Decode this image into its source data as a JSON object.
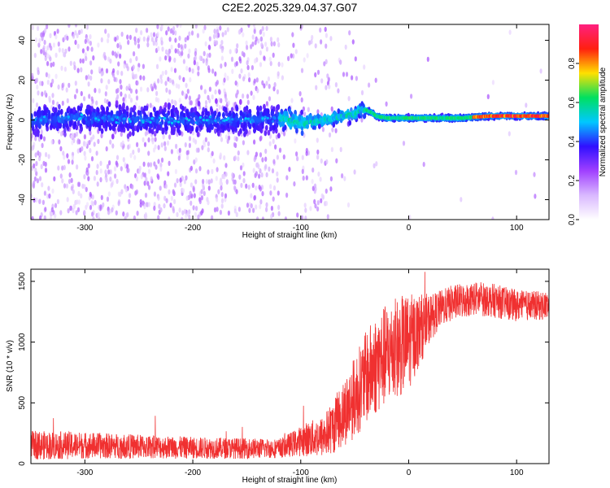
{
  "chart_data": [
    {
      "type": "heatmap",
      "title": "C2E2.2025.329.04.37.G07",
      "xlabel": "Height of straight line (km)",
      "ylabel": "Frequency (Hz)",
      "xlim": [
        -350,
        130
      ],
      "ylim": [
        -50,
        48
      ],
      "x_ticks": [
        -300,
        -200,
        -100,
        0,
        100
      ],
      "y_ticks": [
        -40,
        -20,
        0,
        20,
        40
      ],
      "colorbar": {
        "label": "Normalized spectral amplitude",
        "range": [
          0,
          1
        ],
        "ticks": [
          0.0,
          0.2,
          0.4,
          0.6,
          0.8
        ],
        "colors": [
          "#ffffff",
          "#d9b8ff",
          "#a040ff",
          "#3010ff",
          "#00c8ff",
          "#00e060",
          "#ffe000",
          "#ff2010",
          "#ff2080"
        ]
      },
      "ridge": {
        "description": "amplitude concentrated near 0 Hz; noisy below -120 km, coherent narrow line above -40 km",
        "centerline": [
          [
            -350,
            0
          ],
          [
            -300,
            1
          ],
          [
            -250,
            0
          ],
          [
            -200,
            0
          ],
          [
            -150,
            0
          ],
          [
            -120,
            1
          ],
          [
            -110,
            0
          ],
          [
            -100,
            -2
          ],
          [
            -90,
            -1
          ],
          [
            -80,
            0
          ],
          [
            -70,
            1
          ],
          [
            -60,
            2
          ],
          [
            -50,
            3
          ],
          [
            -45,
            5
          ],
          [
            -40,
            5
          ],
          [
            -35,
            4
          ],
          [
            -30,
            2
          ],
          [
            -20,
            1
          ],
          [
            -10,
            1
          ],
          [
            0,
            1
          ],
          [
            20,
            1
          ],
          [
            50,
            1
          ],
          [
            75,
            2
          ],
          [
            90,
            2
          ],
          [
            110,
            2
          ],
          [
            130,
            2
          ]
        ]
      }
    },
    {
      "type": "line",
      "xlabel": "Height of straight line (km)",
      "ylabel": "SNR (10 * v/v)",
      "xlim": [
        -350,
        130
      ],
      "ylim": [
        0,
        1600
      ],
      "x_ticks": [
        -300,
        -200,
        -100,
        0,
        100
      ],
      "y_ticks": [
        0,
        500,
        1000,
        1500
      ],
      "series": [
        {
          "name": "SNR",
          "color": "#f03030",
          "envelope": [
            [
              -350,
              150,
              120
            ],
            [
              -300,
              150,
              110
            ],
            [
              -250,
              140,
              100
            ],
            [
              -200,
              130,
              90
            ],
            [
              -150,
              125,
              85
            ],
            [
              -120,
              125,
              80
            ],
            [
              -105,
              170,
              110
            ],
            [
              -95,
              200,
              140
            ],
            [
              -80,
              220,
              170
            ],
            [
              -70,
              300,
              220
            ],
            [
              -60,
              420,
              280
            ],
            [
              -50,
              550,
              340
            ],
            [
              -40,
              700,
              380
            ],
            [
              -30,
              820,
              420
            ],
            [
              -20,
              900,
              420
            ],
            [
              -10,
              950,
              420
            ],
            [
              0,
              1000,
              400
            ],
            [
              10,
              1100,
              300
            ],
            [
              20,
              1200,
              200
            ],
            [
              30,
              1280,
              150
            ],
            [
              40,
              1320,
              150
            ],
            [
              60,
              1360,
              140
            ],
            [
              80,
              1340,
              140
            ],
            [
              100,
              1300,
              130
            ],
            [
              120,
              1300,
              120
            ],
            [
              130,
              1300,
              120
            ]
          ]
        }
      ]
    }
  ]
}
